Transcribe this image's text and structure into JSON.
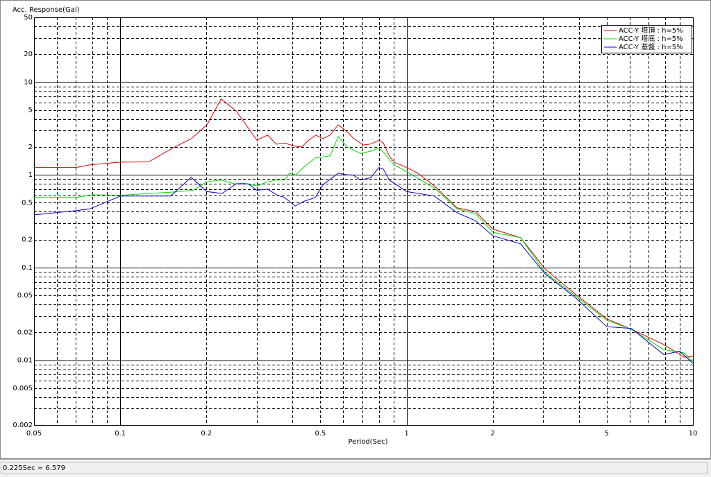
{
  "chart_data": {
    "type": "line",
    "y_label": "Acc. Response(Gal)",
    "x_label": "Period(Sec)",
    "log_x": true,
    "log_y": true,
    "grid": true,
    "legend": "upper right",
    "xlim": [
      0.05,
      10
    ],
    "xticks": [
      0.05,
      0.1,
      0.2,
      0.5,
      1,
      2,
      5,
      10
    ],
    "xminor": [
      0.06,
      0.07,
      0.08,
      0.09,
      0.3,
      0.4,
      0.6,
      0.7,
      0.8,
      0.9,
      3,
      4,
      6,
      7,
      8,
      9
    ],
    "ylim": [
      0.002,
      50
    ],
    "yticks": [
      0.002,
      0.005,
      0.01,
      0.02,
      0.05,
      0.1,
      0.2,
      0.5,
      1,
      2,
      5,
      10,
      20,
      50
    ],
    "yminor": [
      0.003,
      0.004,
      0.006,
      0.007,
      0.008,
      0.009,
      0.03,
      0.04,
      0.06,
      0.07,
      0.08,
      0.09,
      0.3,
      0.4,
      0.6,
      0.7,
      0.8,
      0.9,
      3,
      4,
      6,
      7,
      8,
      9,
      30,
      40
    ],
    "series": [
      {
        "name": "ACC-Y 塔頂 : h=5%",
        "color": "#dd0000",
        "x": [
          0.05,
          0.07,
          0.0785,
          0.1,
          0.126,
          0.153,
          0.177,
          0.201,
          0.225,
          0.254,
          0.3,
          0.327,
          0.351,
          0.375,
          0.408,
          0.43,
          0.456,
          0.482,
          0.51,
          0.54,
          0.577,
          0.621,
          0.65,
          0.705,
          0.75,
          0.8,
          0.83,
          0.87,
          0.905,
          1.0,
          1.09,
          1.25,
          1.5,
          1.74,
          2.0,
          2.5,
          3.05,
          3.9,
          5.0,
          6.1,
          7.9,
          9.3,
          10
        ],
        "values": [
          1.2,
          1.2,
          1.28,
          1.37,
          1.38,
          1.96,
          2.45,
          3.47,
          6.58,
          4.89,
          2.37,
          2.68,
          2.14,
          2.2,
          2.03,
          2.0,
          2.37,
          2.68,
          2.45,
          2.68,
          3.47,
          2.9,
          2.5,
          2.1,
          2.15,
          2.35,
          2.2,
          1.6,
          1.37,
          1.2,
          1.05,
          0.76,
          0.44,
          0.4,
          0.26,
          0.21,
          0.096,
          0.051,
          0.028,
          0.0215,
          0.0148,
          0.0108,
          0.011
        ]
      },
      {
        "name": "ACC-Y 塔底 : h=5%",
        "color": "#00dd00",
        "x": [
          0.05,
          0.07,
          0.08,
          0.1,
          0.126,
          0.15,
          0.18,
          0.2,
          0.225,
          0.25,
          0.27,
          0.3,
          0.327,
          0.35,
          0.375,
          0.39,
          0.41,
          0.44,
          0.48,
          0.54,
          0.577,
          0.62,
          0.69,
          0.75,
          0.8,
          0.83,
          0.9,
          1.0,
          1.25,
          1.5,
          1.74,
          2.0,
          2.5,
          3.05,
          3.9,
          5.0,
          6.1,
          7.9,
          9.3,
          10
        ],
        "values": [
          0.57,
          0.57,
          0.61,
          0.6,
          0.63,
          0.65,
          0.68,
          0.84,
          0.88,
          0.8,
          0.81,
          0.76,
          0.84,
          0.88,
          0.88,
          1.04,
          1.0,
          1.23,
          1.52,
          1.6,
          2.59,
          2.0,
          1.7,
          1.8,
          1.95,
          1.75,
          1.3,
          1.08,
          0.72,
          0.43,
          0.38,
          0.24,
          0.21,
          0.088,
          0.049,
          0.027,
          0.0215,
          0.013,
          0.012,
          0.0096
        ]
      },
      {
        "name": "ACC-Y 基盤 : h=5%",
        "color": "#0000cc",
        "x": [
          0.05,
          0.07,
          0.0785,
          0.1,
          0.126,
          0.15,
          0.177,
          0.2,
          0.227,
          0.254,
          0.28,
          0.3,
          0.327,
          0.355,
          0.375,
          0.408,
          0.44,
          0.48,
          0.51,
          0.577,
          0.62,
          0.65,
          0.69,
          0.75,
          0.8,
          0.83,
          0.87,
          1.0,
          1.25,
          1.5,
          1.74,
          2.0,
          2.5,
          3.05,
          3.9,
          5.0,
          6.1,
          7.9,
          9.0,
          10
        ],
        "values": [
          0.37,
          0.41,
          0.43,
          0.59,
          0.59,
          0.59,
          0.94,
          0.66,
          0.63,
          0.8,
          0.8,
          0.68,
          0.7,
          0.6,
          0.57,
          0.46,
          0.52,
          0.57,
          0.78,
          1.04,
          1.0,
          1.0,
          0.88,
          0.93,
          1.2,
          1.15,
          0.88,
          0.66,
          0.59,
          0.39,
          0.32,
          0.22,
          0.18,
          0.085,
          0.047,
          0.023,
          0.022,
          0.0115,
          0.0125,
          0.0092
        ]
      }
    ]
  },
  "status_bar": "0.225Sec = 6.579"
}
